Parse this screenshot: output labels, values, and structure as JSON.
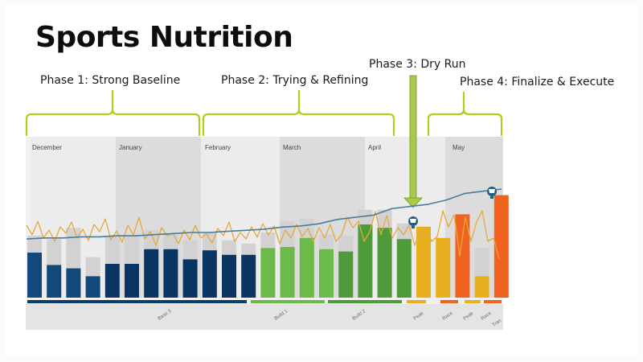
{
  "slide": {
    "title": "Sports Nutrition",
    "phases": [
      {
        "label": "Phase 1: Strong Baseline"
      },
      {
        "label": "Phase 2: Trying & Refining"
      },
      {
        "label": "Phase 3: Dry Run"
      },
      {
        "label": "Phase 4: Finalize & Execute"
      }
    ]
  },
  "chart_data": {
    "type": "bar",
    "title": "",
    "months": [
      "December",
      "January",
      "February",
      "March",
      "April",
      "May"
    ],
    "blocks": [
      "Base 3",
      "Build 1",
      "Build 2",
      "Peak",
      "Race",
      "Peak",
      "Race",
      "Tran"
    ],
    "colors": {
      "base": "#12497a",
      "base_dark": "#0a3563",
      "build1": "#6cba4a",
      "build2": "#4e9b3c",
      "peak": "#e8b020",
      "race": "#f0621f",
      "fatigue": "#4a7d9a",
      "form": "#e7a83a",
      "ghost": "#d2d2d2"
    },
    "weeks": [
      {
        "load": 0.4,
        "ghost": 0.55,
        "color": "base"
      },
      {
        "load": 0.29,
        "ghost": 0.52,
        "color": "base"
      },
      {
        "load": 0.26,
        "ghost": 0.62,
        "color": "base"
      },
      {
        "load": 0.19,
        "ghost": 0.36,
        "color": "base"
      },
      {
        "load": 0.3,
        "ghost": 0.54,
        "color": "base_dark"
      },
      {
        "load": 0.3,
        "ghost": 0.55,
        "color": "base_dark"
      },
      {
        "load": 0.43,
        "ghost": 0.6,
        "color": "base_dark"
      },
      {
        "load": 0.43,
        "ghost": 0.56,
        "color": "base_dark"
      },
      {
        "load": 0.34,
        "ghost": 0.51,
        "color": "base_dark"
      },
      {
        "load": 0.42,
        "ghost": 0.58,
        "color": "base_dark"
      },
      {
        "load": 0.38,
        "ghost": 0.51,
        "color": "base_dark"
      },
      {
        "load": 0.38,
        "ghost": 0.48,
        "color": "base_dark"
      },
      {
        "load": 0.44,
        "ghost": 0.58,
        "color": "build1"
      },
      {
        "load": 0.45,
        "ghost": 0.68,
        "color": "build1"
      },
      {
        "load": 0.53,
        "ghost": 0.7,
        "color": "build1"
      },
      {
        "load": 0.43,
        "ghost": 0.56,
        "color": "build1"
      },
      {
        "load": 0.41,
        "ghost": 0.55,
        "color": "build2"
      },
      {
        "load": 0.65,
        "ghost": 0.78,
        "color": "build2"
      },
      {
        "load": 0.62,
        "ghost": 0.78,
        "color": "build2"
      },
      {
        "load": 0.52,
        "ghost": 0.66,
        "color": "build2"
      },
      {
        "load": 0.63,
        "ghost": 0.63,
        "color": "peak"
      },
      {
        "load": 0.53,
        "ghost": 0.53,
        "color": "peak"
      },
      {
        "load": 0.74,
        "ghost": 0.74,
        "color": "race"
      },
      {
        "load": 0.19,
        "ghost": 0.44,
        "color": "peak"
      },
      {
        "load": 0.91,
        "ghost": 0.91,
        "color": "race"
      }
    ],
    "fitness_line": [
      0.54,
      0.55,
      0.55,
      0.56,
      0.56,
      0.57,
      0.57,
      0.58,
      0.59,
      0.6,
      0.6,
      0.61,
      0.62,
      0.63,
      0.65,
      0.66,
      0.68,
      0.72,
      0.74,
      0.76,
      0.82,
      0.84,
      0.86,
      0.9,
      0.96,
      0.98,
      1.0
    ]
  }
}
